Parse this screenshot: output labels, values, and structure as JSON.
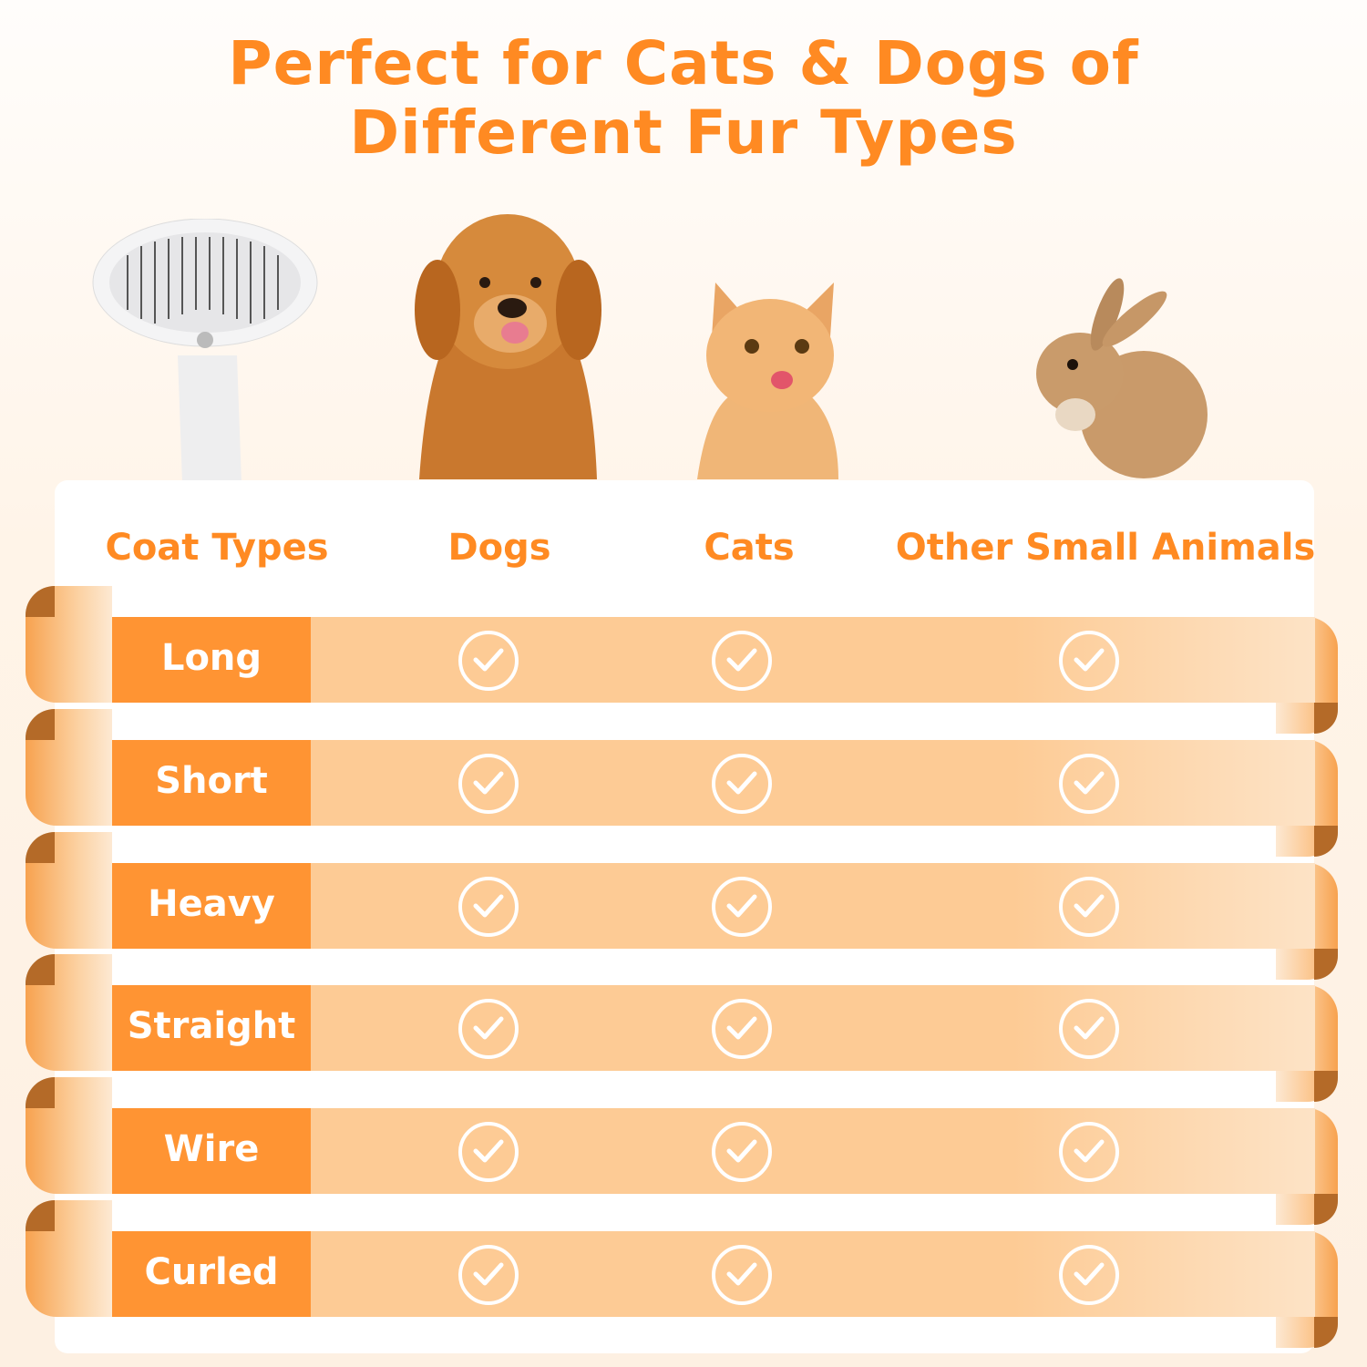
{
  "title": {
    "line1": "Perfect for Cats & Dogs of",
    "line2": "Different Fur Types"
  },
  "images": [
    {
      "name": "brush"
    },
    {
      "name": "golden-retriever"
    },
    {
      "name": "kitten"
    },
    {
      "name": "rabbit"
    }
  ],
  "table": {
    "headers": [
      "Coat Types",
      "Dogs",
      "Cats",
      "Other Small Animals"
    ],
    "rows": [
      {
        "label": "Long",
        "dogs": true,
        "cats": true,
        "other": true
      },
      {
        "label": "Short",
        "dogs": true,
        "cats": true,
        "other": true
      },
      {
        "label": "Heavy",
        "dogs": true,
        "cats": true,
        "other": true
      },
      {
        "label": "Straight",
        "dogs": true,
        "cats": true,
        "other": true
      },
      {
        "label": "Wire",
        "dogs": true,
        "cats": true,
        "other": true
      },
      {
        "label": "Curled",
        "dogs": true,
        "cats": true,
        "other": true
      }
    ]
  },
  "colors": {
    "accent": "#ff8a22",
    "label_bg": "#ff9433",
    "band": "#fdcb95"
  },
  "icons": {
    "check": "check-circle-icon"
  }
}
